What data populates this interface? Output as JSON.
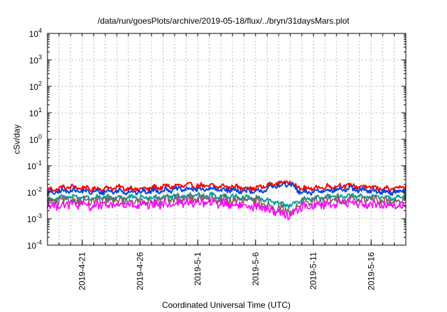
{
  "chart_data": {
    "type": "line",
    "title": "/data/run/goesPlots/archive/2019-05-18/flux/../bryn/31daysMars.plot",
    "xlabel": "Coordinated Universal Time (UTC)",
    "ylabel": "cSv/day",
    "yscale": "log",
    "ylim": [
      0.0001,
      10000
    ],
    "xlim": [
      "2019-04-18",
      "2019-05-19"
    ],
    "grid": true,
    "legend": "none",
    "y_tick_labels": [
      {
        "base": "10",
        "exp": "4"
      },
      {
        "base": "10",
        "exp": "3"
      },
      {
        "base": "10",
        "exp": "2"
      },
      {
        "base": "10",
        "exp": "1"
      },
      {
        "base": "10",
        "exp": "0"
      },
      {
        "base": "10",
        "exp": "-1"
      },
      {
        "base": "10",
        "exp": "-2"
      },
      {
        "base": "10",
        "exp": "-3"
      },
      {
        "base": "10",
        "exp": "-4"
      }
    ],
    "x_tick_labels": [
      "2019-4-21",
      "2019-4-26",
      "2019-5-1",
      "2019-5-6",
      "2019-5-11",
      "2019-5-16"
    ],
    "series": [
      {
        "color": "#ff0000",
        "values": [
          [
            "2019-04-18",
            0.012
          ],
          [
            "2019-04-20",
            0.016
          ],
          [
            "2019-04-22",
            0.013
          ],
          [
            "2019-04-24",
            0.015
          ],
          [
            "2019-04-26",
            0.013
          ],
          [
            "2019-04-28",
            0.016
          ],
          [
            "2019-04-30",
            0.018
          ],
          [
            "2019-05-02",
            0.017
          ],
          [
            "2019-05-04",
            0.016
          ],
          [
            "2019-05-06",
            0.014
          ],
          [
            "2019-05-08",
            0.022
          ],
          [
            "2019-05-09",
            0.025
          ],
          [
            "2019-05-10",
            0.013
          ],
          [
            "2019-05-12",
            0.016
          ],
          [
            "2019-05-14",
            0.018
          ],
          [
            "2019-05-16",
            0.015
          ],
          [
            "2019-05-18",
            0.013
          ],
          [
            "2019-05-19",
            0.016
          ]
        ]
      },
      {
        "color": "#0044dd",
        "values": [
          [
            "2019-04-18",
            0.009
          ],
          [
            "2019-04-20",
            0.012
          ],
          [
            "2019-04-22",
            0.01
          ],
          [
            "2019-04-24",
            0.011
          ],
          [
            "2019-04-26",
            0.01
          ],
          [
            "2019-04-28",
            0.012
          ],
          [
            "2019-04-30",
            0.013
          ],
          [
            "2019-05-02",
            0.013
          ],
          [
            "2019-05-04",
            0.012
          ],
          [
            "2019-05-06",
            0.01
          ],
          [
            "2019-05-08",
            0.018
          ],
          [
            "2019-05-09",
            0.02
          ],
          [
            "2019-05-10",
            0.009
          ],
          [
            "2019-05-12",
            0.012
          ],
          [
            "2019-05-14",
            0.013
          ],
          [
            "2019-05-16",
            0.011
          ],
          [
            "2019-05-18",
            0.01
          ],
          [
            "2019-05-19",
            0.012
          ]
        ]
      },
      {
        "color": "#00a0a0",
        "values": [
          [
            "2019-04-18",
            0.005
          ],
          [
            "2019-04-20",
            0.007
          ],
          [
            "2019-04-22",
            0.006
          ],
          [
            "2019-04-24",
            0.0065
          ],
          [
            "2019-04-26",
            0.006
          ],
          [
            "2019-04-28",
            0.007
          ],
          [
            "2019-04-30",
            0.0075
          ],
          [
            "2019-05-02",
            0.0075
          ],
          [
            "2019-05-04",
            0.007
          ],
          [
            "2019-05-06",
            0.006
          ],
          [
            "2019-05-08",
            0.004
          ],
          [
            "2019-05-09",
            0.003
          ],
          [
            "2019-05-10",
            0.005
          ],
          [
            "2019-05-12",
            0.0065
          ],
          [
            "2019-05-14",
            0.007
          ],
          [
            "2019-05-16",
            0.0065
          ],
          [
            "2019-05-18",
            0.006
          ],
          [
            "2019-05-19",
            0.007
          ]
        ]
      },
      {
        "color": "#806060",
        "values": [
          [
            "2019-04-18",
            0.004
          ],
          [
            "2019-04-20",
            0.005
          ],
          [
            "2019-04-22",
            0.0045
          ],
          [
            "2019-04-24",
            0.005
          ],
          [
            "2019-04-26",
            0.0045
          ],
          [
            "2019-04-28",
            0.005
          ],
          [
            "2019-04-30",
            0.0055
          ],
          [
            "2019-05-02",
            0.0055
          ],
          [
            "2019-05-04",
            0.005
          ],
          [
            "2019-05-06",
            0.0045
          ],
          [
            "2019-05-08",
            0.0025
          ],
          [
            "2019-05-09",
            0.0018
          ],
          [
            "2019-05-10",
            0.004
          ],
          [
            "2019-05-12",
            0.005
          ],
          [
            "2019-05-14",
            0.0055
          ],
          [
            "2019-05-16",
            0.005
          ],
          [
            "2019-05-18",
            0.0045
          ],
          [
            "2019-05-19",
            0.005
          ]
        ]
      },
      {
        "color": "#ff00ff",
        "values": [
          [
            "2019-04-18",
            0.003
          ],
          [
            "2019-04-20",
            0.0035
          ],
          [
            "2019-04-22",
            0.003
          ],
          [
            "2019-04-24",
            0.0034
          ],
          [
            "2019-04-26",
            0.003
          ],
          [
            "2019-04-28",
            0.0035
          ],
          [
            "2019-04-30",
            0.004
          ],
          [
            "2019-05-02",
            0.004
          ],
          [
            "2019-05-04",
            0.0035
          ],
          [
            "2019-05-06",
            0.003
          ],
          [
            "2019-05-08",
            0.0018
          ],
          [
            "2019-05-09",
            0.0013
          ],
          [
            "2019-05-10",
            0.0028
          ],
          [
            "2019-05-12",
            0.0035
          ],
          [
            "2019-05-14",
            0.004
          ],
          [
            "2019-05-16",
            0.0035
          ],
          [
            "2019-05-18",
            0.003
          ],
          [
            "2019-05-19",
            0.0035
          ]
        ]
      }
    ]
  }
}
